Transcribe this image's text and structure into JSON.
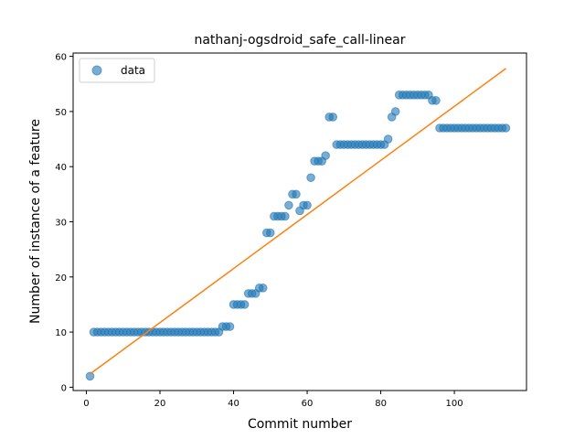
{
  "chart_data": {
    "type": "scatter",
    "title": "nathanj-ogsdroid_safe_call-linear",
    "xlabel": "Commit number",
    "ylabel": "Number of instance of a feature",
    "xlim": [
      -3.6,
      119.6
    ],
    "ylim": [
      -0.6,
      60.6
    ],
    "xticks": [
      0,
      20,
      40,
      60,
      80,
      100
    ],
    "yticks": [
      0,
      10,
      20,
      30,
      40,
      50,
      60
    ],
    "grid": false,
    "legend": {
      "placement": "top-left",
      "entries": [
        "data"
      ]
    },
    "colors": {
      "data": "#1f77b4",
      "fit": "#ff7f0e"
    },
    "series": [
      {
        "name": "data",
        "style": "markers",
        "x": [
          1,
          2,
          3,
          4,
          5,
          6,
          7,
          8,
          9,
          10,
          11,
          12,
          13,
          14,
          15,
          16,
          17,
          18,
          19,
          20,
          21,
          22,
          23,
          24,
          25,
          26,
          27,
          28,
          29,
          30,
          31,
          32,
          33,
          34,
          35,
          36,
          37,
          38,
          39,
          40,
          41,
          42,
          43,
          44,
          45,
          46,
          47,
          48,
          49,
          50,
          51,
          52,
          53,
          54,
          55,
          56,
          57,
          58,
          59,
          60,
          61,
          62,
          63,
          64,
          65,
          66,
          67,
          68,
          69,
          70,
          71,
          72,
          73,
          74,
          75,
          76,
          77,
          78,
          79,
          80,
          81,
          82,
          83,
          84,
          85,
          86,
          87,
          88,
          89,
          90,
          91,
          92,
          93,
          94,
          95,
          96,
          97,
          98,
          99,
          100,
          101,
          102,
          103,
          104,
          105,
          106,
          107,
          108,
          109,
          110,
          111,
          112,
          113,
          114
        ],
        "y": [
          2,
          10,
          10,
          10,
          10,
          10,
          10,
          10,
          10,
          10,
          10,
          10,
          10,
          10,
          10,
          10,
          10,
          10,
          10,
          10,
          10,
          10,
          10,
          10,
          10,
          10,
          10,
          10,
          10,
          10,
          10,
          10,
          10,
          10,
          10,
          10,
          11,
          11,
          11,
          15,
          15,
          15,
          15,
          17,
          17,
          17,
          18,
          18,
          28,
          28,
          31,
          31,
          31,
          31,
          33,
          35,
          35,
          32,
          33,
          33,
          38,
          41,
          41,
          41,
          42,
          49,
          49,
          44,
          44,
          44,
          44,
          44,
          44,
          44,
          44,
          44,
          44,
          44,
          44,
          44,
          44,
          45,
          49,
          50,
          53,
          53,
          53,
          53,
          53,
          53,
          53,
          53,
          53,
          52,
          52,
          47,
          47,
          47,
          47,
          47,
          47,
          47,
          47,
          47,
          47,
          47,
          47,
          47,
          47,
          47,
          47,
          47,
          47,
          47
        ]
      },
      {
        "name": "",
        "style": "line",
        "x": [
          1,
          114
        ],
        "y": [
          2.4,
          57.8
        ]
      }
    ]
  }
}
